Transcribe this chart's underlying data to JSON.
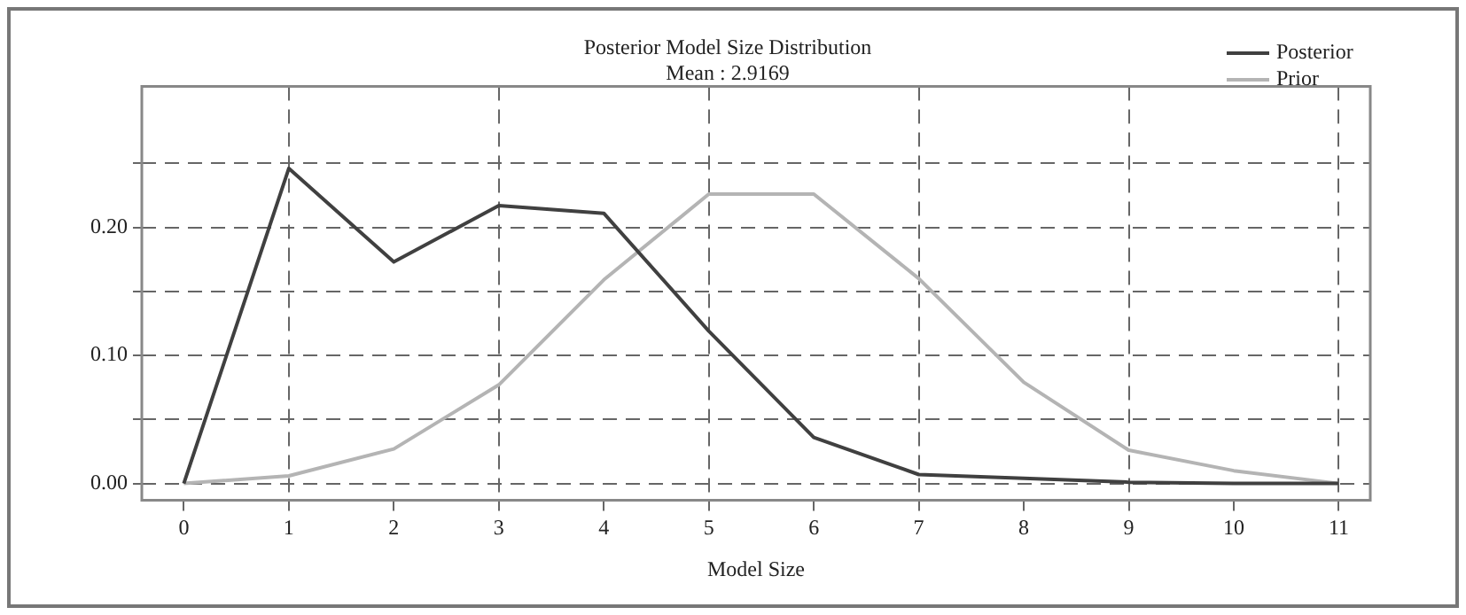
{
  "chart_data": {
    "type": "line",
    "title": "Posterior Model Size Distribution",
    "subtitle": "Mean : 2.9169",
    "xlabel": "Model Size",
    "x": [
      0,
      1,
      2,
      3,
      4,
      5,
      6,
      7,
      8,
      9,
      10,
      11
    ],
    "series": [
      {
        "name": "Posterior",
        "color": "#404040",
        "values": [
          0,
          0.246,
          0.173,
          0.217,
          0.211,
          0.119,
          0.036,
          0.007,
          0.004,
          0.001,
          0,
          0
        ]
      },
      {
        "name": "Prior",
        "color": "#b4b4b4",
        "values": [
          0,
          0.006,
          0.027,
          0.077,
          0.159,
          0.226,
          0.226,
          0.16,
          0.079,
          0.026,
          0.01,
          0
        ]
      }
    ],
    "xlim": [
      -0.4,
      11.3
    ],
    "xticks": [
      0,
      1,
      2,
      3,
      4,
      5,
      6,
      7,
      8,
      9,
      10,
      11
    ],
    "ylim": [
      -0.013,
      0.31
    ],
    "yticks": [
      {
        "value": 0,
        "label": "0.00"
      },
      {
        "value": 0.05,
        "label": null
      },
      {
        "value": 0.1,
        "label": "0.10"
      },
      {
        "value": 0.15,
        "label": null
      },
      {
        "value": 0.2,
        "label": "0.20"
      },
      {
        "value": 0.25,
        "label": null
      }
    ],
    "grid": true,
    "legend": "top right",
    "marker": "none",
    "line_style": "solid"
  }
}
